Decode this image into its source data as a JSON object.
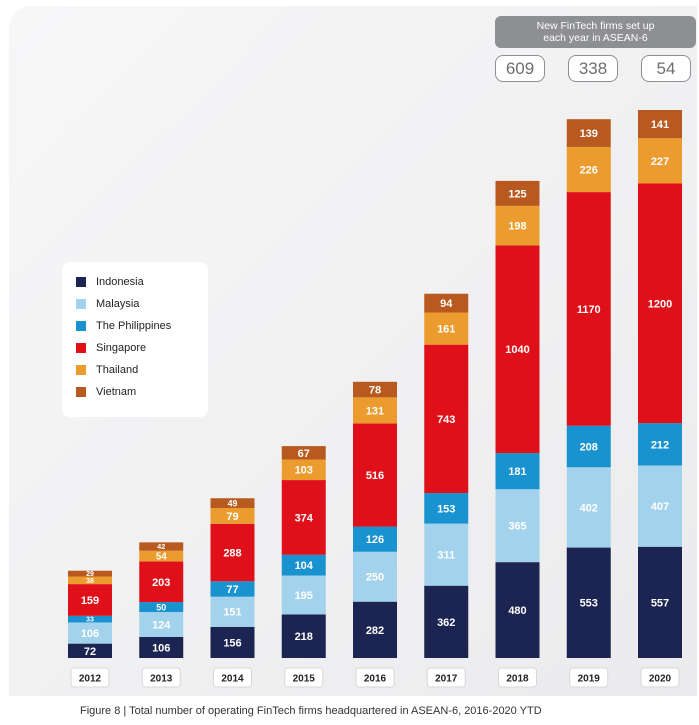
{
  "callout": {
    "text": "New FinTech firms set up each year in ASEAN-6",
    "counts": [
      "609",
      "338",
      "54"
    ]
  },
  "caption": "Figure 8   |   Total number of operating FinTech firms headquartered in ASEAN-6, 2016-2020 YTD",
  "colors": {
    "Indonesia": "#1c2451",
    "Malaysia": "#a3d3ec",
    "The Philippines": "#1992d0",
    "Singapore": "#e0101a",
    "Thailand": "#ec9b2e",
    "Vietnam": "#b85a20"
  },
  "chart_data": {
    "type": "bar",
    "stacked": true,
    "categories": [
      "2012",
      "2013",
      "2014",
      "2015",
      "2016",
      "2017",
      "2018",
      "2019",
      "2020"
    ],
    "series": [
      {
        "name": "Indonesia",
        "values": [
          72,
          106,
          156,
          218,
          282,
          362,
          480,
          553,
          557
        ]
      },
      {
        "name": "Malaysia",
        "values": [
          106,
          124,
          151,
          195,
          250,
          311,
          365,
          402,
          407
        ]
      },
      {
        "name": "The Philippines",
        "values": [
          33,
          50,
          77,
          104,
          126,
          153,
          181,
          208,
          212
        ]
      },
      {
        "name": "Singapore",
        "values": [
          159,
          203,
          288,
          374,
          516,
          743,
          1040,
          1170,
          1200
        ]
      },
      {
        "name": "Thailand",
        "values": [
          38,
          54,
          79,
          103,
          131,
          161,
          198,
          226,
          227
        ]
      },
      {
        "name": "Vietnam",
        "values": [
          29,
          42,
          49,
          67,
          78,
          94,
          125,
          139,
          141
        ]
      }
    ],
    "title": "",
    "legend_position": "left",
    "grid": false
  }
}
